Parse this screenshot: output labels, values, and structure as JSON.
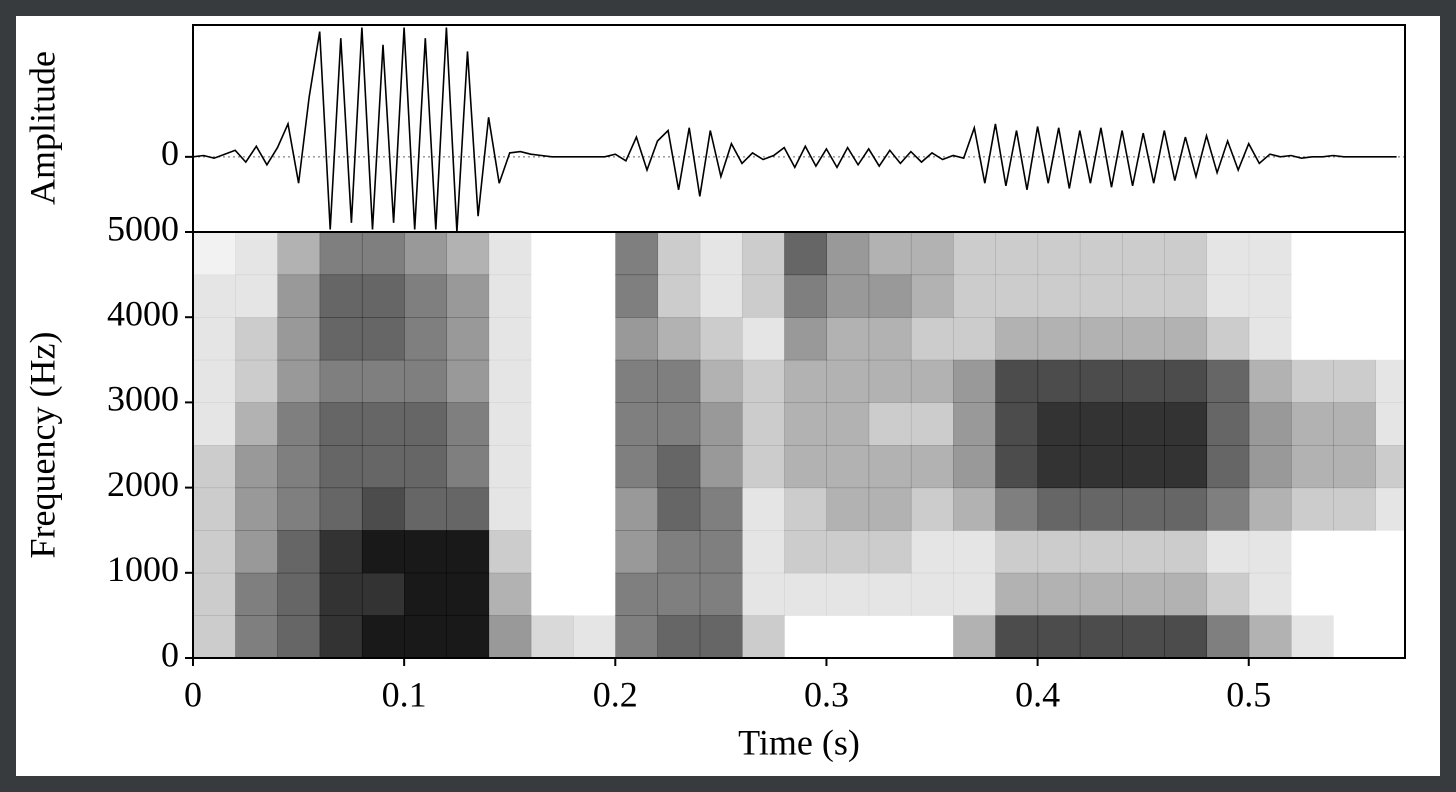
{
  "chart_data": [
    {
      "type": "line",
      "ylabel": "Amplitude",
      "color": "#000000",
      "xlim": [
        0,
        0.574
      ],
      "ylim": [
        -0.57,
        1
      ],
      "yticks": [
        0
      ],
      "zero_line": "dotted",
      "x": [
        0,
        0.005,
        0.01,
        0.015,
        0.02,
        0.025,
        0.03,
        0.035,
        0.04,
        0.045,
        0.05,
        0.055,
        0.06,
        0.065,
        0.07,
        0.075,
        0.08,
        0.085,
        0.09,
        0.095,
        0.1,
        0.105,
        0.11,
        0.115,
        0.12,
        0.125,
        0.13,
        0.135,
        0.14,
        0.145,
        0.15,
        0.155,
        0.16,
        0.165,
        0.17,
        0.175,
        0.18,
        0.185,
        0.19,
        0.195,
        0.2,
        0.205,
        0.21,
        0.215,
        0.22,
        0.225,
        0.23,
        0.235,
        0.24,
        0.245,
        0.25,
        0.255,
        0.26,
        0.265,
        0.27,
        0.275,
        0.28,
        0.285,
        0.29,
        0.295,
        0.3,
        0.305,
        0.31,
        0.315,
        0.32,
        0.325,
        0.33,
        0.335,
        0.34,
        0.345,
        0.35,
        0.355,
        0.36,
        0.365,
        0.37,
        0.375,
        0.38,
        0.385,
        0.39,
        0.395,
        0.4,
        0.405,
        0.41,
        0.415,
        0.42,
        0.425,
        0.43,
        0.435,
        0.44,
        0.445,
        0.45,
        0.455,
        0.46,
        0.465,
        0.47,
        0.475,
        0.48,
        0.485,
        0.49,
        0.495,
        0.5,
        0.505,
        0.51,
        0.515,
        0.52,
        0.525,
        0.53,
        0.535,
        0.54,
        0.545,
        0.55,
        0.555,
        0.56,
        0.565,
        0.57
      ],
      "values": [
        0,
        0.01,
        -0.01,
        0.02,
        0.05,
        -0.04,
        0.08,
        -0.06,
        0.07,
        0.25,
        -0.2,
        0.45,
        0.95,
        -0.55,
        0.9,
        -0.5,
        0.98,
        -0.55,
        0.85,
        -0.5,
        0.98,
        -0.55,
        0.9,
        -0.55,
        0.98,
        -0.57,
        0.8,
        -0.45,
        0.3,
        -0.2,
        0.03,
        0.04,
        0.02,
        0.01,
        0,
        0,
        0,
        0,
        0,
        0,
        0.02,
        -0.03,
        0.15,
        -0.1,
        0.12,
        0.2,
        -0.25,
        0.22,
        -0.3,
        0.2,
        -0.15,
        0.1,
        -0.05,
        0.03,
        -0.02,
        0.01,
        0.07,
        -0.08,
        0.08,
        -0.07,
        0.06,
        -0.08,
        0.07,
        -0.06,
        0.06,
        -0.07,
        0.05,
        -0.05,
        0.04,
        -0.04,
        0.03,
        -0.02,
        0.01,
        -0.01,
        0.22,
        -0.2,
        0.25,
        -0.22,
        0.2,
        -0.25,
        0.23,
        -0.2,
        0.22,
        -0.24,
        0.2,
        -0.2,
        0.22,
        -0.23,
        0.2,
        -0.22,
        0.18,
        -0.2,
        0.2,
        -0.18,
        0.15,
        -0.15,
        0.16,
        -0.12,
        0.12,
        -0.1,
        0.1,
        -0.05,
        0.02,
        0,
        0.01,
        -0.01,
        0,
        0,
        0.01,
        0,
        0,
        0,
        0,
        0,
        0
      ]
    },
    {
      "type": "heatmap",
      "xlabel": "Time (s)",
      "ylabel": "Frequency (Hz)",
      "color": "#000000",
      "xlim": [
        0,
        0.574
      ],
      "ylim": [
        0,
        5000
      ],
      "xticks": [
        0,
        0.1,
        0.2,
        0.3,
        0.4,
        0.5
      ],
      "yticks": [
        0,
        1000,
        2000,
        3000,
        4000,
        5000
      ],
      "x": [
        0.01,
        0.03,
        0.05,
        0.07,
        0.09,
        0.11,
        0.13,
        0.15,
        0.17,
        0.19,
        0.21,
        0.23,
        0.25,
        0.27,
        0.29,
        0.31,
        0.33,
        0.35,
        0.37,
        0.39,
        0.41,
        0.43,
        0.45,
        0.47,
        0.49,
        0.51,
        0.53,
        0.55,
        0.57
      ],
      "y": [
        250,
        750,
        1250,
        1750,
        2250,
        2750,
        3250,
        3750,
        4250,
        4750
      ],
      "values": [
        [
          0.2,
          0.2,
          0.2,
          0.2,
          0.2,
          0.1,
          0.1,
          0.1,
          0.1,
          0.05
        ],
        [
          0.5,
          0.5,
          0.4,
          0.4,
          0.4,
          0.3,
          0.2,
          0.2,
          0.1,
          0.1
        ],
        [
          0.6,
          0.6,
          0.6,
          0.5,
          0.5,
          0.5,
          0.4,
          0.4,
          0.4,
          0.3
        ],
        [
          0.8,
          0.8,
          0.8,
          0.6,
          0.6,
          0.6,
          0.5,
          0.6,
          0.6,
          0.5
        ],
        [
          0.9,
          0.8,
          0.9,
          0.7,
          0.6,
          0.6,
          0.5,
          0.6,
          0.6,
          0.5
        ],
        [
          0.9,
          0.9,
          0.9,
          0.6,
          0.6,
          0.6,
          0.5,
          0.5,
          0.5,
          0.4
        ],
        [
          0.9,
          0.9,
          0.9,
          0.6,
          0.5,
          0.5,
          0.4,
          0.4,
          0.4,
          0.3
        ],
        [
          0.4,
          0.3,
          0.2,
          0.1,
          0.1,
          0.1,
          0.1,
          0.1,
          0.1,
          0.1
        ],
        [
          0.15,
          0,
          0,
          0,
          0,
          0,
          0,
          0,
          0,
          0
        ],
        [
          0.1,
          0,
          0,
          0,
          0,
          0,
          0,
          0,
          0,
          0
        ],
        [
          0.5,
          0.5,
          0.4,
          0.4,
          0.5,
          0.5,
          0.5,
          0.4,
          0.5,
          0.5
        ],
        [
          0.6,
          0.5,
          0.5,
          0.6,
          0.6,
          0.5,
          0.5,
          0.3,
          0.2,
          0.2
        ],
        [
          0.6,
          0.5,
          0.5,
          0.5,
          0.4,
          0.4,
          0.3,
          0.2,
          0.1,
          0.1
        ],
        [
          0.2,
          0.1,
          0.1,
          0.1,
          0.2,
          0.2,
          0.2,
          0.1,
          0.2,
          0.2
        ],
        [
          0,
          0.1,
          0.2,
          0.2,
          0.3,
          0.3,
          0.3,
          0.4,
          0.5,
          0.6
        ],
        [
          0,
          0.1,
          0.2,
          0.3,
          0.3,
          0.3,
          0.3,
          0.3,
          0.4,
          0.4
        ],
        [
          0,
          0.1,
          0.2,
          0.3,
          0.3,
          0.2,
          0.3,
          0.3,
          0.4,
          0.3
        ],
        [
          0,
          0.1,
          0.1,
          0.2,
          0.3,
          0.2,
          0.3,
          0.2,
          0.3,
          0.3
        ],
        [
          0.3,
          0.1,
          0.1,
          0.3,
          0.4,
          0.4,
          0.4,
          0.2,
          0.2,
          0.2
        ],
        [
          0.7,
          0.3,
          0.2,
          0.5,
          0.7,
          0.7,
          0.7,
          0.3,
          0.2,
          0.2
        ],
        [
          0.7,
          0.3,
          0.2,
          0.6,
          0.8,
          0.8,
          0.7,
          0.3,
          0.2,
          0.2
        ],
        [
          0.7,
          0.3,
          0.2,
          0.6,
          0.8,
          0.8,
          0.7,
          0.3,
          0.2,
          0.2
        ],
        [
          0.7,
          0.3,
          0.2,
          0.6,
          0.8,
          0.8,
          0.7,
          0.3,
          0.2,
          0.2
        ],
        [
          0.7,
          0.3,
          0.2,
          0.6,
          0.8,
          0.8,
          0.7,
          0.3,
          0.2,
          0.2
        ],
        [
          0.5,
          0.2,
          0.1,
          0.5,
          0.6,
          0.6,
          0.6,
          0.2,
          0.1,
          0.1
        ],
        [
          0.3,
          0.1,
          0.1,
          0.3,
          0.4,
          0.4,
          0.3,
          0.1,
          0.1,
          0.1
        ],
        [
          0.1,
          0,
          0,
          0.2,
          0.3,
          0.3,
          0.2,
          0,
          0,
          0
        ],
        [
          0,
          0,
          0,
          0.2,
          0.3,
          0.3,
          0.2,
          0,
          0,
          0
        ],
        [
          0,
          0,
          0,
          0.1,
          0.2,
          0.1,
          0.1,
          0,
          0,
          0
        ]
      ]
    }
  ]
}
